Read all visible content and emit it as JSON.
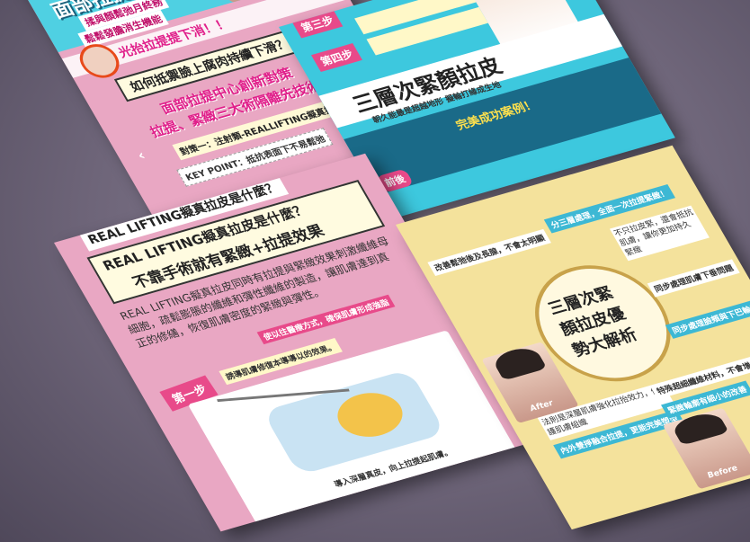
{
  "sheet1": {
    "title": "面部拉提中心",
    "subtitle_a": "揉與顏鬆弛月終務",
    "subtitle_b": "鬆鬆發膽消生機能",
    "banner": "光抬拉提提下消！！",
    "question": "如何抵禦臉上腐肉持續下滑？",
    "pink_line_1": "面部拉提中心創新對策",
    "pink_line_2": "拉提、緊緻三大術隔離先技術",
    "step_note": "對策一：注射類-REALLIFTING擬真拉皮",
    "key_point": "KEY POINT：抵抗表面下不易鬆弛"
  },
  "sheet2": {
    "step3": "第三步",
    "step4": "第四步",
    "headline": "三層次緊顏拉皮",
    "caption": "朝久能最是超越地形 擬輪打緣成生地",
    "success": "完美成功案例！",
    "before": "前後"
  },
  "sheet3": {
    "top_question": "REAL LIFTING擬真拉皮是什麼？",
    "headline_1": "REAL LIFTING擬真拉皮是什麼？",
    "headline_2": "不靠手術就有緊緻+拉提效果",
    "body": "REAL LIFTING擬真拉皮同時有拉提與緊緻效果刺激纖維母細胞，疏鬆膨脹的纖維和彈性纖維的製造，讓肌膚達到真正的修繕，恢復肌膚密度的緊緻與彈性。",
    "body_highlight": "使以往醫療方式，確保肌膚形成強脂",
    "step1": "第一步",
    "step1_text": "誘導肌膚修復本導導以的效果。",
    "caption": "導入深層真皮，向上拉提起肌膚。"
  },
  "sheet4": {
    "center_1": "三層次緊",
    "center_2": "顏拉皮優",
    "center_3": "勢大解析",
    "n1": "分三層處理，全面一次拉提緊緻！",
    "n2": "不只拉皮緊，還會抵抗肌膚，讓你更加持久 緊緻",
    "n3": "改善鬆弛後及長腺，不會太明顯",
    "n4": "同步處理肌膚下垂問題",
    "n5": "同步處理臉頰與下巴輪廓",
    "n6": "法則是深層肌膚強化拉抬效力，修護肌膚組織",
    "n7": "內外雙掙融合拉提，更能完美塑型",
    "n8": "特殊超細纖維材料，不會增加皮膚負擔",
    "n9": "緊緻輪廓有細小的改善",
    "after": "After",
    "before": "Before"
  },
  "colors": {
    "pink": "#e9a7c3",
    "cyan": "#3dc8de",
    "yellow": "#f4e29c",
    "gold": "#c8a24a",
    "magenta": "#e01f8a"
  }
}
